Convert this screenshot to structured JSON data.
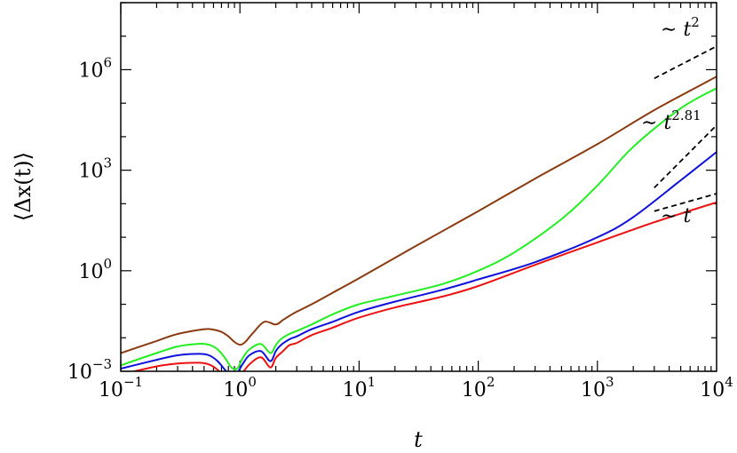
{
  "chart_data": {
    "type": "line",
    "xlabel": "t",
    "ylabel": "⟨Δx(t)⟩",
    "xscale": "log",
    "yscale": "log",
    "xlim": [
      0.1,
      10000
    ],
    "ylim": [
      0.001,
      100000000
    ],
    "x_ticks": [
      {
        "base": "10",
        "exp": "−1",
        "value": 0.1
      },
      {
        "base": "10",
        "exp": "0",
        "value": 1
      },
      {
        "base": "10",
        "exp": "1",
        "value": 10
      },
      {
        "base": "10",
        "exp": "2",
        "value": 100
      },
      {
        "base": "10",
        "exp": "3",
        "value": 1000
      },
      {
        "base": "10",
        "exp": "4",
        "value": 10000
      }
    ],
    "y_ticks": [
      {
        "base": "10",
        "exp": "−3",
        "value": 0.001
      },
      {
        "base": "10",
        "exp": "0",
        "value": 1
      },
      {
        "base": "10",
        "exp": "3",
        "value": 1000
      },
      {
        "base": "10",
        "exp": "6",
        "value": 1000000
      }
    ],
    "grid": false,
    "series": [
      {
        "color": "#8b3a0f",
        "x": [
          0.1,
          0.2,
          0.3,
          0.5,
          0.6,
          0.7,
          0.8,
          0.9,
          1.0,
          1.1,
          1.3,
          1.6,
          2.0,
          2.3,
          2.6,
          3.0,
          4.0,
          6.0,
          10,
          30,
          100,
          300,
          1000,
          3000,
          10000
        ],
        "y": [
          0.0035,
          0.008,
          0.013,
          0.018,
          0.0175,
          0.015,
          0.011,
          0.0075,
          0.0062,
          0.0073,
          0.0145,
          0.03,
          0.025,
          0.034,
          0.045,
          0.06,
          0.1,
          0.22,
          0.6,
          5.5,
          60,
          560,
          6000,
          62000,
          620000
        ]
      },
      {
        "color": "#22ee22",
        "x": [
          0.1,
          0.2,
          0.3,
          0.45,
          0.55,
          0.65,
          0.75,
          0.85,
          0.95,
          1.05,
          1.2,
          1.5,
          1.8,
          2.0,
          2.2,
          2.6,
          3.0,
          4.0,
          6.0,
          10,
          20,
          50,
          100,
          200,
          500,
          1000,
          2000,
          5000,
          10000
        ],
        "y": [
          0.0015,
          0.0035,
          0.0055,
          0.0066,
          0.0062,
          0.0045,
          0.0025,
          0.0013,
          0.0012,
          0.0024,
          0.0045,
          0.0065,
          0.0035,
          0.006,
          0.009,
          0.013,
          0.016,
          0.025,
          0.05,
          0.1,
          0.18,
          0.4,
          1.0,
          3.5,
          35,
          350,
          5000,
          70000,
          280000
        ]
      },
      {
        "color": "#1010dd",
        "x": [
          0.1,
          0.2,
          0.3,
          0.45,
          0.55,
          0.65,
          0.75,
          0.85,
          0.95,
          1.05,
          1.2,
          1.5,
          1.8,
          2.0,
          2.2,
          2.6,
          3.0,
          4.0,
          6.0,
          10,
          20,
          50,
          100,
          300,
          1000,
          2000,
          5000,
          10000
        ],
        "y": [
          0.0012,
          0.0022,
          0.003,
          0.0033,
          0.003,
          0.002,
          0.0011,
          0.0007,
          0.0009,
          0.0016,
          0.003,
          0.004,
          0.002,
          0.004,
          0.006,
          0.009,
          0.011,
          0.018,
          0.03,
          0.06,
          0.12,
          0.27,
          0.55,
          1.8,
          10,
          40,
          500,
          3500
        ]
      },
      {
        "color": "#ee1111",
        "x": [
          0.1,
          0.2,
          0.3,
          0.45,
          0.55,
          0.65,
          0.75,
          0.85,
          1.0,
          1.2,
          1.5,
          1.8,
          2.0,
          2.3,
          2.6,
          3.0,
          4.0,
          6.0,
          10,
          20,
          50,
          100,
          300,
          1000,
          3000,
          10000
        ],
        "y": [
          0.0008,
          0.0014,
          0.0017,
          0.0018,
          0.0016,
          0.0011,
          0.0006,
          0.00035,
          0.0007,
          0.0016,
          0.0026,
          0.0013,
          0.0025,
          0.004,
          0.006,
          0.007,
          0.012,
          0.02,
          0.04,
          0.08,
          0.17,
          0.35,
          1.5,
          7,
          28,
          110
        ]
      }
    ],
    "reference_lines": [
      {
        "x": [
          3000,
          10000
        ],
        "y": [
          550000,
          5000000
        ]
      },
      {
        "x": [
          3000,
          10000
        ],
        "y": [
          300,
          22000
        ]
      },
      {
        "x": [
          3000,
          10000
        ],
        "y": [
          60,
          200
        ]
      }
    ],
    "annotations": [
      {
        "prefix": "∼ ",
        "var": "t",
        "exp": "2"
      },
      {
        "prefix": "∼ ",
        "var": "t",
        "exp": "2.81"
      },
      {
        "prefix": "∼ ",
        "var": "t",
        "exp": ""
      }
    ]
  }
}
